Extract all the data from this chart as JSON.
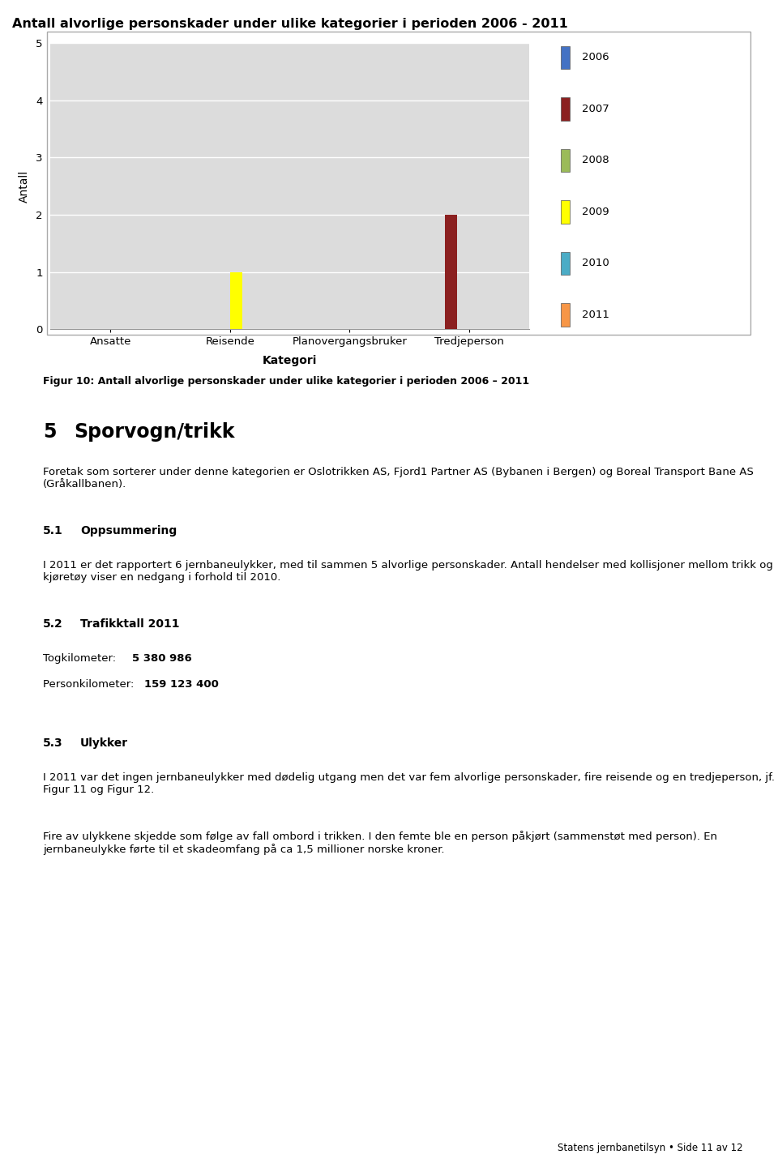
{
  "title": "Antall alvorlige personskader under ulike kategorier i perioden 2006 - 2011",
  "categories": [
    "Ansatte",
    "Reisende",
    "Planovergangsbruker",
    "Tredjeperson"
  ],
  "xlabel": "Kategori",
  "ylabel": "Antall",
  "years": [
    "2006",
    "2007",
    "2008",
    "2009",
    "2010",
    "2011"
  ],
  "year_colors": [
    "#4472C4",
    "#8B2020",
    "#9BBB59",
    "#FFFF00",
    "#4BACC6",
    "#F79646"
  ],
  "data": {
    "Ansatte": [
      0,
      0,
      0,
      0,
      0,
      0
    ],
    "Reisende": [
      0,
      0,
      0,
      1,
      0,
      0
    ],
    "Planovergangsbruker": [
      0,
      0,
      0,
      0,
      0,
      0
    ],
    "Tredjeperson": [
      0,
      2,
      0,
      0,
      0,
      0
    ]
  },
  "ylim": [
    0,
    5
  ],
  "yticks": [
    0,
    1,
    2,
    3,
    4,
    5
  ],
  "plot_area_bg": "#DCDCDC",
  "grid_color": "#FFFFFF",
  "fig_caption": "Figur 10: Antall alvorlige personskader under ulike kategorier i perioden 2006 – 2011",
  "section_body": "Foretak som sorterer under denne kategorien er Oslotrikken AS, Fjord1 Partner AS (Bybanen i Bergen) og Boreal Transport Bane AS (Gråkallbanen).",
  "sub1_body": "I 2011 er det rapportert 6 jernbaneulykker, med til sammen 5 alvorlige personskader. Antall hendelser med kollisjoner mellom trikk og kjøretøy viser en nedgang i forhold til 2010.",
  "sub3_body1": "I 2011 var det ingen jernbaneulykker med dødelig utgang men det var fem alvorlige personskader, fire reisende og en tredjeperson, jf. Figur 11 og Figur 12.",
  "sub3_body2": "Fire av ulykkene skjedde som følge av fall ombord i trikken. I den femte ble en person påkjørt (sammenstøt med person). En jernbaneulykke førte til et skadeomfang på ca 1,5 millioner norske kroner.",
  "footer": "Statens jernbanetilsyn • Side 11 av 12"
}
